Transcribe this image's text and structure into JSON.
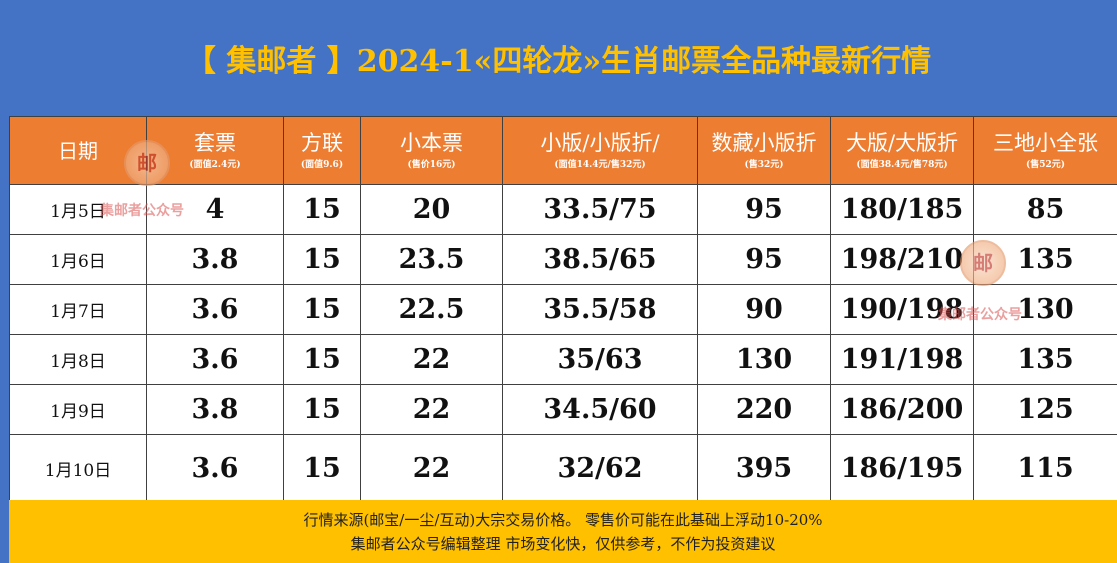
{
  "title": "【 集邮者 】2024-1«四轮龙»生肖邮票全品种最新行情",
  "headers": [
    {
      "label": "日期",
      "sub": ""
    },
    {
      "label": "套票",
      "sub": "(面值2.4元)"
    },
    {
      "label": "方联",
      "sub": "(面值9.6)"
    },
    {
      "label": "小本票",
      "sub": "(售价16元)"
    },
    {
      "label": "小版/小版折/",
      "sub": "(面值14.4元/售32元)"
    },
    {
      "label": "数藏小版折",
      "sub": "(售32元)"
    },
    {
      "label": "大版/大版折",
      "sub": "(面值38.4元/售78元)"
    },
    {
      "label": "三地小全张",
      "sub": "(售52元)"
    }
  ],
  "rows": [
    [
      "1月5日",
      "4",
      "15",
      "20",
      "33.5/75",
      "95",
      "180/185",
      "85"
    ],
    [
      "1月6日",
      "3.8",
      "15",
      "23.5",
      "38.5/65",
      "95",
      "198/210",
      "135"
    ],
    [
      "1月7日",
      "3.6",
      "15",
      "22.5",
      "35.5/58",
      "90",
      "190/198",
      "130"
    ],
    [
      "1月8日",
      "3.6",
      "15",
      "22",
      "35/63",
      "130",
      "191/198",
      "135"
    ],
    [
      "1月9日",
      "3.8",
      "15",
      "22",
      "34.5/60",
      "220",
      "186/200",
      "125"
    ],
    [
      "1月10日",
      "3.6",
      "15",
      "22",
      "32/62",
      "395",
      "186/195",
      "115"
    ]
  ],
  "footer": {
    "line1": "行情来源(邮宝/一尘/互动)大宗交易价格。 零售价可能在此基础上浮动10-20%",
    "line2": "集邮者公众号编辑整理 市场变化快，仅供参考，不作为投资建议"
  },
  "watermark": {
    "stamp_char": "邮",
    "text": "集邮者公众号"
  }
}
